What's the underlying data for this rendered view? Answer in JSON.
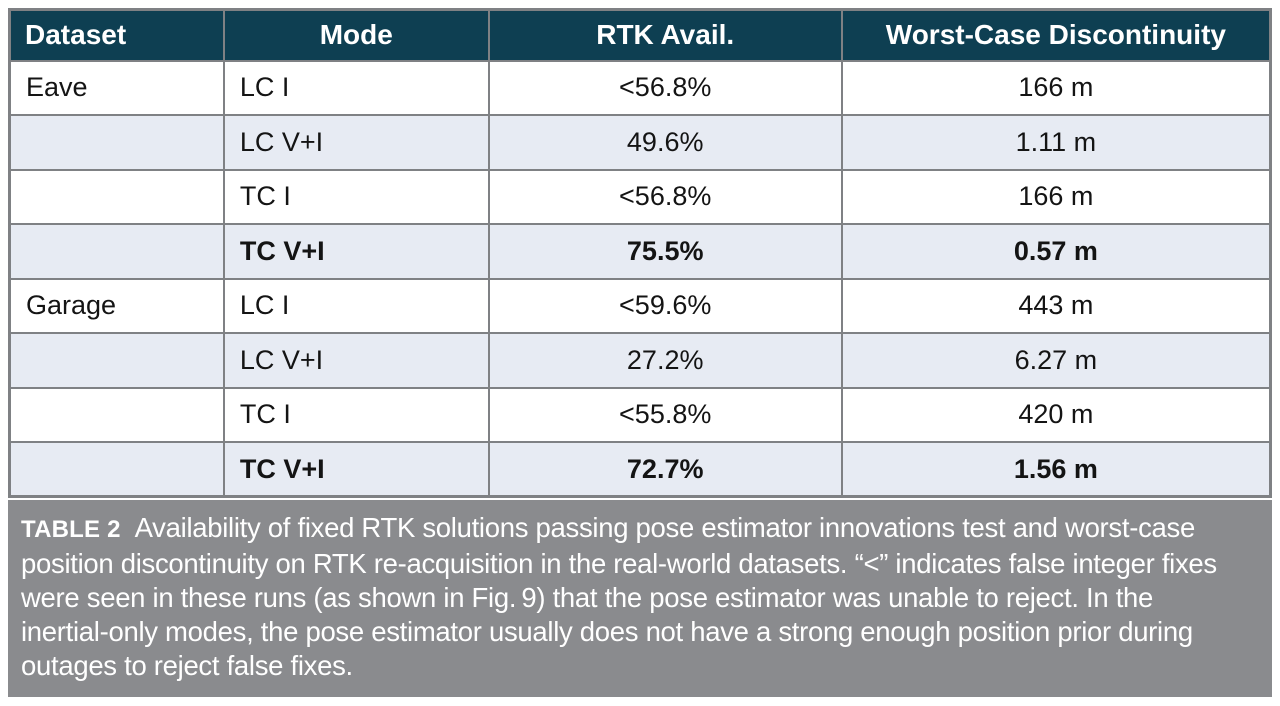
{
  "table": {
    "columns": [
      {
        "label": "Dataset",
        "align": "left"
      },
      {
        "label": "Mode",
        "align": "center"
      },
      {
        "label": "RTK Avail.",
        "align": "center"
      },
      {
        "label": "Worst-Case Discontinuity",
        "align": "center"
      }
    ],
    "rows": [
      {
        "dataset": "Eave",
        "mode": "LC I",
        "rtk": "<56.8%",
        "disc": "166 m",
        "bold": false,
        "shaded": false
      },
      {
        "dataset": "",
        "mode": "LC V+I",
        "rtk": "49.6%",
        "disc": "1.11 m",
        "bold": false,
        "shaded": true
      },
      {
        "dataset": "",
        "mode": "TC I",
        "rtk": "<56.8%",
        "disc": "166 m",
        "bold": false,
        "shaded": false
      },
      {
        "dataset": "",
        "mode": "TC V+I",
        "rtk": "75.5%",
        "disc": "0.57 m",
        "bold": true,
        "shaded": true
      },
      {
        "dataset": "Garage",
        "mode": "LC I",
        "rtk": "<59.6%",
        "disc": "443 m",
        "bold": false,
        "shaded": false
      },
      {
        "dataset": "",
        "mode": "LC V+I",
        "rtk": "27.2%",
        "disc": "6.27 m",
        "bold": false,
        "shaded": true
      },
      {
        "dataset": "",
        "mode": "TC I",
        "rtk": "<55.8%",
        "disc": "420 m",
        "bold": false,
        "shaded": false
      },
      {
        "dataset": "",
        "mode": "TC V+I",
        "rtk": "72.7%",
        "disc": "1.56 m",
        "bold": true,
        "shaded": true
      }
    ]
  },
  "caption": {
    "label": "TABLE 2",
    "text": "Availability of fixed RTK solutions passing pose estimator innovations test and worst-case position discontinuity on RTK re-acquisition in the real-world datasets. “<” indicates false integer fixes were seen in these runs (as shown in Fig. 9) that the pose estimator was unable to reject. In the inertial-only modes, the pose estimator usually does not have a strong enough position prior during outages to reject false fixes."
  },
  "colors": {
    "header_bg": "#0E3F52",
    "header_text": "#FFFFFF",
    "row_shade": "#E7EBF3",
    "row_white": "#FFFFFF",
    "border": "#7F8184",
    "cell_text": "#141414",
    "caption_bg": "#8A8B8E",
    "caption_text": "#FFFFFF"
  }
}
